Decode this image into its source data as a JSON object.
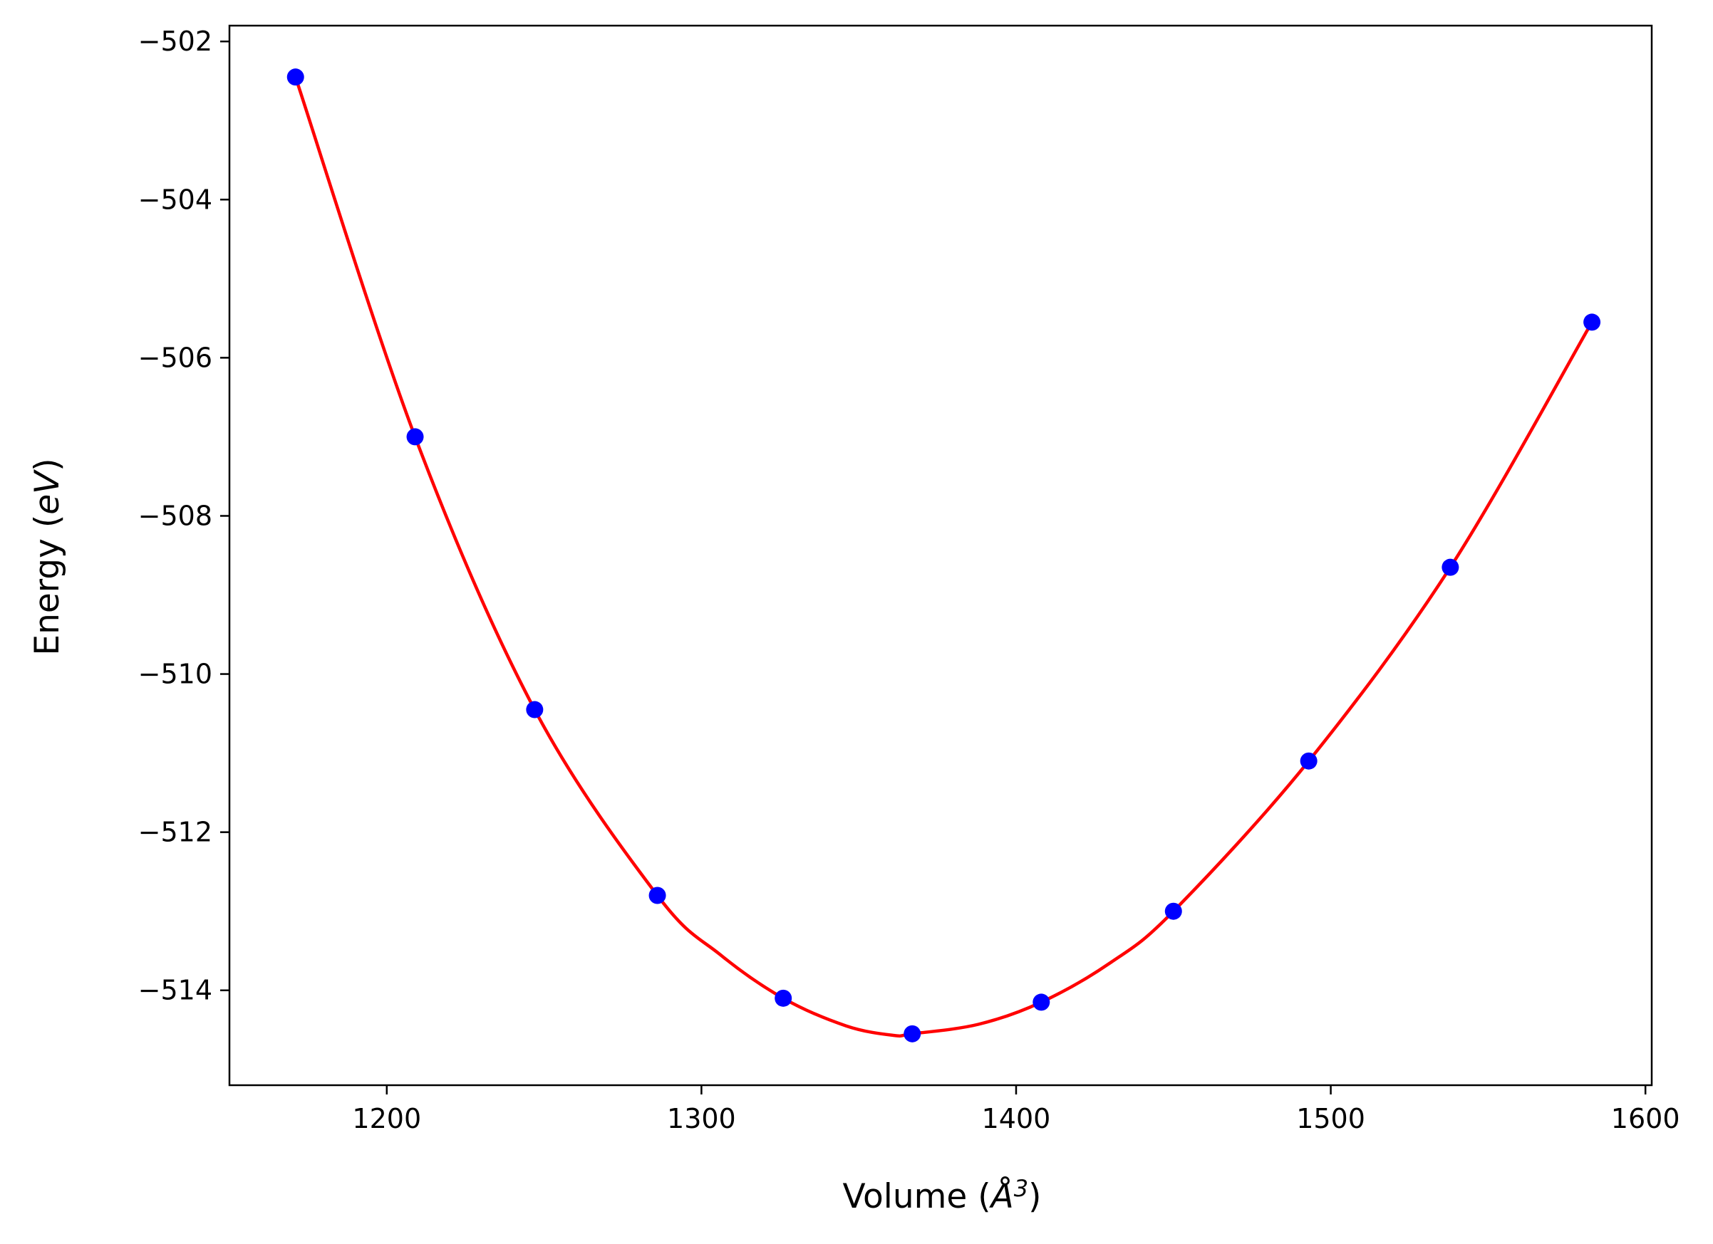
{
  "chart_data": {
    "type": "scatter",
    "xlabel_main": "Volume (",
    "xlabel_unit": "Å",
    "xlabel_sup": "3",
    "xlabel_close": ")",
    "ylabel_main": "Energy (",
    "ylabel_unit": "eV",
    "ylabel_close": ")",
    "xlim": [
      1150,
      1602
    ],
    "ylim": [
      -515.2,
      -501.8
    ],
    "xticks": [
      1200,
      1300,
      1400,
      1500,
      1600
    ],
    "yticks": [
      -502,
      -504,
      -506,
      -508,
      -510,
      -512,
      -514
    ],
    "xtick_labels": [
      "1200",
      "1300",
      "1400",
      "1500",
      "1600"
    ],
    "ytick_labels": [
      "−502",
      "−504",
      "−506",
      "−508",
      "−510",
      "−512",
      "−514"
    ],
    "grid": false,
    "colors": {
      "points": "#0000ff",
      "fit": "#ff0000",
      "axes": "#000000"
    },
    "series": [
      {
        "kind": "points",
        "x": [
          1171,
          1209,
          1247,
          1286,
          1326,
          1367,
          1408,
          1450,
          1493,
          1538,
          1583
        ],
        "y": [
          -502.45,
          -507.0,
          -510.45,
          -512.8,
          -514.1,
          -514.55,
          -514.15,
          -513.0,
          -511.1,
          -508.65,
          -505.55
        ]
      },
      {
        "kind": "fit-curve",
        "x": [
          1171,
          1209,
          1247,
          1286,
          1306,
          1326,
          1346,
          1361,
          1367,
          1388,
          1408,
          1430,
          1450,
          1493,
          1538,
          1583
        ],
        "y": [
          -502.45,
          -507.0,
          -510.45,
          -512.8,
          -513.55,
          -514.1,
          -514.45,
          -514.57,
          -514.55,
          -514.43,
          -514.15,
          -513.65,
          -513.0,
          -511.1,
          -508.65,
          -505.55
        ]
      }
    ]
  }
}
